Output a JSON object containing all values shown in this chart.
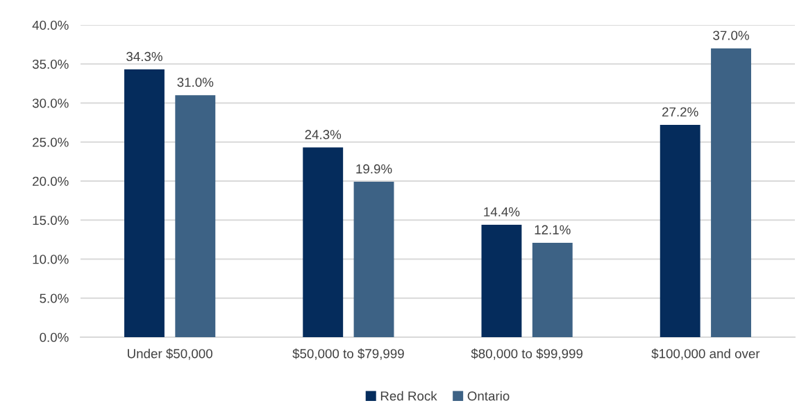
{
  "chart_data": {
    "type": "bar",
    "categories": [
      "Under $50,000",
      "$50,000 to $79,999",
      "$80,000 to $99,999",
      "$100,000 and over"
    ],
    "series": [
      {
        "name": "Red Rock",
        "color": "#052c5c",
        "values": [
          34.3,
          24.3,
          14.4,
          27.2
        ],
        "value_labels": [
          "34.3%",
          "24.3%",
          "14.4%",
          "27.2%"
        ]
      },
      {
        "name": "Ontario",
        "color": "#3d6285",
        "values": [
          31.0,
          19.9,
          12.1,
          37.0
        ],
        "value_labels": [
          "31.0%",
          "19.9%",
          "12.1%",
          "37.0%"
        ]
      }
    ],
    "ylim": [
      0,
      40
    ],
    "yticks": [
      {
        "value": 0,
        "label": "0.0%"
      },
      {
        "value": 5,
        "label": "5.0%"
      },
      {
        "value": 10,
        "label": "10.0%"
      },
      {
        "value": 15,
        "label": "15.0%"
      },
      {
        "value": 20,
        "label": "20.0%"
      },
      {
        "value": 25,
        "label": "25.0%"
      },
      {
        "value": 30,
        "label": "30.0%"
      },
      {
        "value": 35,
        "label": "35.0%"
      },
      {
        "value": 40,
        "label": "40.0%"
      }
    ],
    "grid": "y",
    "legend": "bottom"
  }
}
